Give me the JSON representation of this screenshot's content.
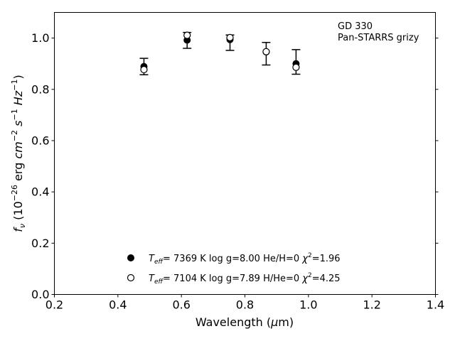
{
  "chart_data": {
    "type": "scatter",
    "annotation": [
      "GD 330",
      "Pan-STARRS grizy"
    ],
    "xlabel": "Wavelength (μm)",
    "ylabel": "f_ν (10^−26 erg cm^−2 s^−1 Hz^−1)",
    "xlim": [
      0.2,
      1.4
    ],
    "ylim": [
      0.0,
      1.1
    ],
    "x_ticks": [
      "0.2",
      "0.4",
      "0.6",
      "0.8",
      "1.0",
      "1.2",
      "1.4"
    ],
    "y_ticks": [
      "0.0",
      "0.2",
      "0.4",
      "0.6",
      "0.8",
      "1.0"
    ],
    "grid": false,
    "legend_position": "lower-center",
    "observed": {
      "x": [
        0.482,
        0.618,
        0.753,
        0.867,
        0.961
      ],
      "y": [
        0.889,
        0.991,
        0.982,
        0.939,
        0.907
      ],
      "yerr": [
        0.032,
        0.031,
        0.03,
        0.044,
        0.048
      ]
    },
    "series": [
      {
        "name": "T_eff=  7369 K  log g=8.00  He/H=0  χ²=1.96",
        "marker": "filled-circle",
        "x": [
          0.482,
          0.618,
          0.753,
          0.867,
          0.961
        ],
        "y": [
          0.889,
          0.992,
          0.994,
          0.946,
          0.9
        ]
      },
      {
        "name": "T_eff=  7104 K  log g=7.89  H/He=0  χ²=4.25",
        "marker": "open-circle",
        "x": [
          0.482,
          0.618,
          0.753,
          0.867,
          0.961
        ],
        "y": [
          0.877,
          1.011,
          1.002,
          0.947,
          0.886
        ]
      }
    ]
  }
}
